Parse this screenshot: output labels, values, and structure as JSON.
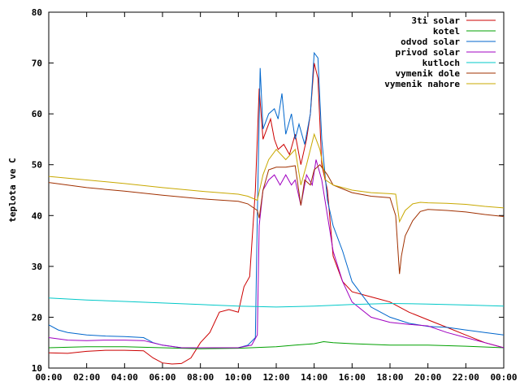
{
  "chart_data": {
    "type": "line",
    "ylabel": "teplota ve C",
    "xlim": [
      0,
      24
    ],
    "ylim": [
      10,
      80
    ],
    "x_ticks": [
      "00:00",
      "02:00",
      "04:00",
      "06:00",
      "08:00",
      "10:00",
      "12:00",
      "14:00",
      "16:00",
      "18:00",
      "20:00",
      "22:00",
      "00:00"
    ],
    "y_ticks": [
      "10",
      "20",
      "30",
      "40",
      "50",
      "60",
      "70",
      "80"
    ],
    "legend_position": "top-right",
    "grid": false,
    "series": [
      {
        "name": "3ti solar",
        "color": "#cc0000",
        "x": [
          0,
          1,
          2,
          3,
          4,
          5,
          5.5,
          6,
          6.5,
          7,
          7.5,
          8,
          8.5,
          9,
          9.5,
          10,
          10.3,
          10.6,
          10.9,
          11.1,
          11.3,
          11.5,
          11.7,
          11.9,
          12.1,
          12.4,
          12.7,
          13,
          13.3,
          13.6,
          13.8,
          14,
          14.2,
          14.4,
          14.7,
          15,
          15.5,
          16,
          17,
          17.5,
          18,
          19,
          20,
          21,
          22,
          23,
          24
        ],
        "y": [
          13,
          12.9,
          13.3,
          13.5,
          13.5,
          13.4,
          12,
          11,
          10.8,
          10.9,
          12,
          15,
          17,
          21,
          21.5,
          21,
          26,
          28,
          45,
          65,
          55,
          57,
          59,
          55,
          53,
          54,
          52,
          56,
          50,
          55,
          60,
          70,
          67,
          50,
          45,
          32,
          27,
          25,
          24,
          23.5,
          23,
          21,
          19.5,
          18,
          16.5,
          15,
          14
        ]
      },
      {
        "name": "kotel",
        "color": "#00a000",
        "x": [
          0,
          2,
          4,
          6,
          8,
          10,
          12,
          13,
          14,
          14.5,
          15,
          16,
          18,
          20,
          22,
          24
        ],
        "y": [
          14,
          14.2,
          14.2,
          14,
          13.8,
          13.9,
          14.2,
          14.5,
          14.8,
          15.2,
          15,
          14.8,
          14.5,
          14.5,
          14.3,
          14
        ]
      },
      {
        "name": "odvod solar",
        "color": "#0066cc",
        "x": [
          0,
          0.5,
          1,
          2,
          3,
          4,
          5,
          5.5,
          6,
          7,
          8,
          9,
          10,
          10.5,
          10.9,
          11.0,
          11.15,
          11.3,
          11.6,
          11.9,
          12.1,
          12.3,
          12.5,
          12.8,
          13,
          13.2,
          13.5,
          13.8,
          14,
          14.2,
          14.4,
          14.7,
          15,
          15.5,
          16,
          17,
          18,
          19,
          20,
          21,
          22,
          23,
          24
        ],
        "y": [
          18.5,
          17.5,
          17,
          16.5,
          16.3,
          16.2,
          16,
          15,
          14.5,
          14,
          14,
          14,
          14,
          14.5,
          16,
          40,
          69,
          57,
          60,
          61,
          59,
          64,
          56,
          60,
          55,
          58,
          54,
          60,
          72,
          71,
          55,
          43,
          38,
          33,
          27,
          22,
          20,
          18.8,
          18.2,
          18,
          17.5,
          17,
          16.5
        ]
      },
      {
        "name": "privod solar",
        "color": "#a000c0",
        "x": [
          0,
          1,
          2,
          3,
          4,
          5,
          6,
          7,
          8,
          9,
          10,
          10.7,
          11,
          11.1,
          11.3,
          11.6,
          11.9,
          12.2,
          12.5,
          12.8,
          13,
          13.3,
          13.6,
          13.9,
          14.1,
          14.4,
          14.7,
          15,
          15.5,
          16,
          17,
          18,
          19,
          20,
          21,
          22,
          23,
          24
        ],
        "y": [
          16,
          15.5,
          15.4,
          15.5,
          15.5,
          15.4,
          14.5,
          14,
          14,
          14,
          14,
          14.5,
          16.5,
          38,
          45,
          47,
          48,
          46,
          48,
          46,
          47,
          42,
          48,
          46,
          51,
          47,
          40,
          33,
          27,
          23,
          20,
          19,
          18.6,
          18.3,
          17,
          16,
          15,
          14
        ]
      },
      {
        "name": "kutloch",
        "color": "#00c8c8",
        "x": [
          0,
          2,
          4,
          6,
          8,
          10,
          12,
          14,
          16,
          18,
          20,
          22,
          24
        ],
        "y": [
          23.8,
          23.4,
          23.1,
          22.8,
          22.5,
          22.2,
          22.0,
          22.2,
          22.5,
          22.7,
          22.6,
          22.4,
          22.2
        ]
      },
      {
        "name": "vymenik dole",
        "color": "#a03000",
        "x": [
          0,
          2,
          4,
          6,
          8,
          10,
          10.5,
          11,
          11.1,
          11.3,
          11.6,
          12,
          12.5,
          13,
          13.3,
          13.5,
          13.8,
          14,
          14.3,
          14.7,
          15,
          16,
          17,
          18,
          18.3,
          18.5,
          18.6,
          18.8,
          19.2,
          19.6,
          20,
          21,
          22,
          23,
          24
        ],
        "y": [
          46.5,
          45.5,
          44.8,
          44,
          43.3,
          42.8,
          42.3,
          41,
          39.5,
          45,
          49,
          49.5,
          49.5,
          49.8,
          42,
          47,
          46,
          49,
          50,
          48,
          46,
          44.5,
          43.8,
          43.5,
          40,
          28.5,
          32,
          36,
          39,
          40.8,
          41.2,
          41,
          40.7,
          40.2,
          39.8
        ]
      },
      {
        "name": "vymenik nahore",
        "color": "#c8a800",
        "x": [
          0,
          2,
          4,
          6,
          8,
          10,
          10.5,
          11,
          11.3,
          11.6,
          12,
          12.5,
          13,
          13.3,
          13.6,
          14,
          14.3,
          14.6,
          15,
          16,
          17,
          18,
          18.3,
          18.5,
          18.8,
          19.2,
          19.6,
          20,
          21,
          22,
          23,
          24
        ],
        "y": [
          47.7,
          47,
          46.3,
          45.5,
          44.8,
          44.2,
          43.8,
          43,
          48,
          51,
          53,
          51,
          53,
          46,
          50,
          56,
          53,
          47,
          46,
          45,
          44.5,
          44.3,
          44.2,
          38.8,
          41,
          42.3,
          42.6,
          42.5,
          42.4,
          42.2,
          41.8,
          41.5
        ]
      }
    ]
  }
}
